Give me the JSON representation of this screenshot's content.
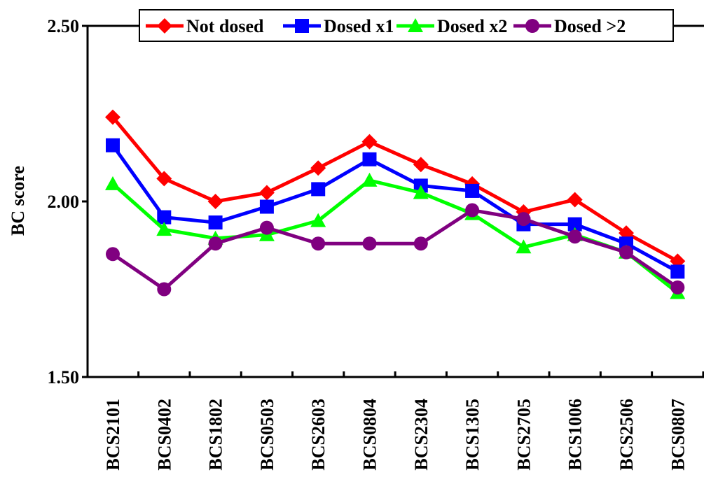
{
  "chart_data": {
    "type": "line",
    "title": "",
    "xlabel": "",
    "ylabel": "BC score",
    "ylim": [
      1.5,
      2.5
    ],
    "yticks": [
      "1.50",
      "2.00",
      "2.50"
    ],
    "grid": false,
    "legend_position": "top",
    "categories": [
      "BCS2101",
      "BCS0402",
      "BCS1802",
      "BCS0503",
      "BCS2603",
      "BCS0804",
      "BCS2304",
      "BCS1305",
      "BCS2705",
      "BCS1006",
      "BCS2506",
      "BCS0807"
    ],
    "series": [
      {
        "name": "Not dosed",
        "color": "#ff0000",
        "marker": "diamond",
        "values": [
          2.24,
          2.065,
          2.0,
          2.025,
          2.095,
          2.17,
          2.105,
          2.05,
          1.97,
          2.005,
          1.91,
          1.83
        ]
      },
      {
        "name": "Dosed x1",
        "color": "#0000ff",
        "marker": "square",
        "values": [
          2.16,
          1.955,
          1.94,
          1.985,
          2.035,
          2.12,
          2.045,
          2.03,
          1.935,
          1.935,
          1.88,
          1.8
        ]
      },
      {
        "name": "Dosed x2",
        "color": "#00ff00",
        "marker": "triangle",
        "values": [
          2.05,
          1.92,
          1.895,
          1.905,
          1.945,
          2.06,
          2.025,
          1.965,
          1.87,
          1.905,
          1.855,
          1.74
        ]
      },
      {
        "name": "Dosed >2",
        "color": "#800080",
        "marker": "circle",
        "values": [
          1.85,
          1.75,
          1.88,
          1.925,
          1.88,
          1.88,
          1.88,
          1.975,
          1.95,
          1.9,
          1.855,
          1.755
        ]
      }
    ]
  }
}
